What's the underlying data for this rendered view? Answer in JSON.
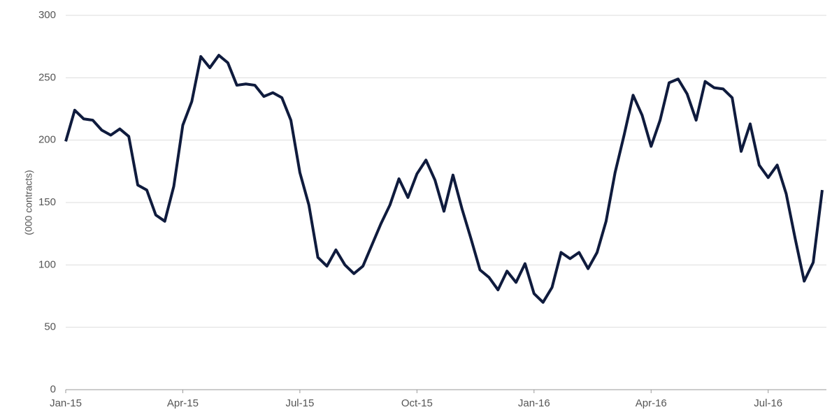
{
  "chart_data": {
    "type": "line",
    "y_label": "(000 contracts)",
    "categories": [
      "Jan-15",
      null,
      null,
      null,
      null,
      null,
      null,
      null,
      null,
      null,
      null,
      null,
      null,
      "Apr-15",
      null,
      null,
      null,
      null,
      null,
      null,
      null,
      null,
      null,
      null,
      null,
      null,
      "Jul-15",
      null,
      null,
      null,
      null,
      null,
      null,
      null,
      null,
      null,
      null,
      null,
      null,
      "Oct-15",
      null,
      null,
      null,
      null,
      null,
      null,
      null,
      null,
      null,
      null,
      null,
      null,
      "Jan-16",
      null,
      null,
      null,
      null,
      null,
      null,
      null,
      null,
      null,
      null,
      null,
      null,
      "Apr-16",
      null,
      null,
      null,
      null,
      null,
      null,
      null,
      null,
      null,
      null,
      null,
      null,
      "Jul-16",
      null,
      null,
      null,
      null,
      null,
      null
    ],
    "values": [
      199,
      224,
      217,
      216,
      208,
      204,
      209,
      203,
      164,
      160,
      140,
      135,
      163,
      212,
      231,
      267,
      258,
      268,
      262,
      244,
      245,
      244,
      235,
      238,
      234,
      216,
      174,
      148,
      106,
      99,
      112,
      100,
      93,
      99,
      116,
      133,
      148,
      169,
      154,
      173,
      184,
      168,
      143,
      172,
      145,
      121,
      96,
      90,
      80,
      95,
      86,
      101,
      77,
      70,
      82,
      110,
      105,
      110,
      97,
      110,
      135,
      174,
      204,
      236,
      220,
      195,
      216,
      246,
      249,
      237,
      216,
      247,
      242,
      241,
      234,
      191,
      213,
      180,
      170,
      180,
      157,
      121,
      87,
      102,
      160
    ],
    "color": "#0f1b3d",
    "ylim": [
      0,
      300
    ],
    "yticks": [
      0,
      50,
      100,
      150,
      200,
      250,
      300
    ],
    "grid": true
  }
}
